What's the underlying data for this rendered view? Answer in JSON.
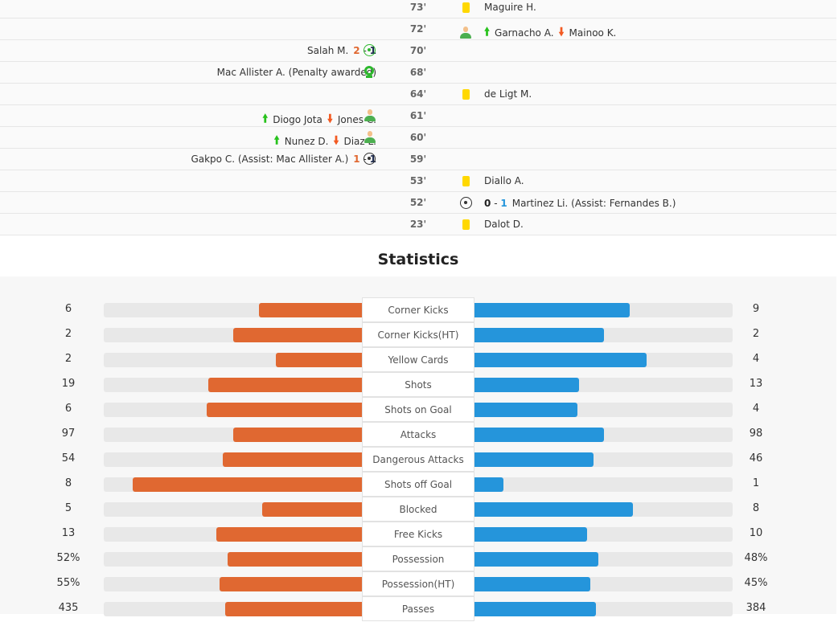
{
  "events": [
    {
      "minute": "73'",
      "side": "away",
      "icon": "yellow-card",
      "player": "Maguire H."
    },
    {
      "minute": "72'",
      "side": "away",
      "icon": "substitution",
      "in": "Garnacho A.",
      "out": "Mainoo K."
    },
    {
      "minute": "70'",
      "side": "home",
      "icon": "penalty-goal",
      "player": "Salah M.",
      "score_home": "2",
      "score_away": "1"
    },
    {
      "minute": "68'",
      "side": "home",
      "icon": "penalty-awarded",
      "player": "Mac Allister A. (Penalty awarded)"
    },
    {
      "minute": "64'",
      "side": "away",
      "icon": "yellow-card",
      "player": "de Ligt M."
    },
    {
      "minute": "61'",
      "side": "home",
      "icon": "substitution",
      "in": "Diogo Jota",
      "out": "Jones C."
    },
    {
      "minute": "60'",
      "side": "home",
      "icon": "substitution",
      "in": "Nunez D.",
      "out": "Diaz L."
    },
    {
      "minute": "59'",
      "side": "home",
      "icon": "goal",
      "player": "Gakpo C. (Assist: Mac Allister A.)",
      "score_home": "1",
      "score_away": "1"
    },
    {
      "minute": "53'",
      "side": "away",
      "icon": "yellow-card",
      "player": "Diallo A."
    },
    {
      "minute": "52'",
      "side": "away",
      "icon": "goal",
      "player": "Martinez Li. (Assist: Fernandes B.)",
      "score_home": "0",
      "score_away": "1"
    },
    {
      "minute": "23'",
      "side": "away",
      "icon": "yellow-card",
      "player": "Dalot D."
    }
  ],
  "score_separator": "-",
  "statistics": {
    "title": "Statistics",
    "colors": {
      "home": "#e06831",
      "away": "#2595db"
    },
    "rows": [
      {
        "label": "Corner Kicks",
        "home": "6",
        "away": "9",
        "home_share": 0.4,
        "away_share": 0.6
      },
      {
        "label": "Corner Kicks(HT)",
        "home": "2",
        "away": "2",
        "home_share": 0.5,
        "away_share": 0.5
      },
      {
        "label": "Yellow Cards",
        "home": "2",
        "away": "4",
        "home_share": 0.333,
        "away_share": 0.667
      },
      {
        "label": "Shots",
        "home": "19",
        "away": "13",
        "home_share": 0.594,
        "away_share": 0.406
      },
      {
        "label": "Shots on Goal",
        "home": "6",
        "away": "4",
        "home_share": 0.6,
        "away_share": 0.4
      },
      {
        "label": "Attacks",
        "home": "97",
        "away": "98",
        "home_share": 0.497,
        "away_share": 0.503
      },
      {
        "label": "Dangerous Attacks",
        "home": "54",
        "away": "46",
        "home_share": 0.54,
        "away_share": 0.46
      },
      {
        "label": "Shots off Goal",
        "home": "8",
        "away": "1",
        "home_share": 0.889,
        "away_share": 0.111
      },
      {
        "label": "Blocked",
        "home": "5",
        "away": "8",
        "home_share": 0.385,
        "away_share": 0.615
      },
      {
        "label": "Free Kicks",
        "home": "13",
        "away": "10",
        "home_share": 0.565,
        "away_share": 0.435
      },
      {
        "label": "Possession",
        "home": "52%",
        "away": "48%",
        "home_share": 0.52,
        "away_share": 0.48
      },
      {
        "label": "Possession(HT)",
        "home": "55%",
        "away": "45%",
        "home_share": 0.55,
        "away_share": 0.45
      },
      {
        "label": "Passes",
        "home": "435",
        "away": "384",
        "home_share": 0.531,
        "away_share": 0.469
      }
    ]
  }
}
